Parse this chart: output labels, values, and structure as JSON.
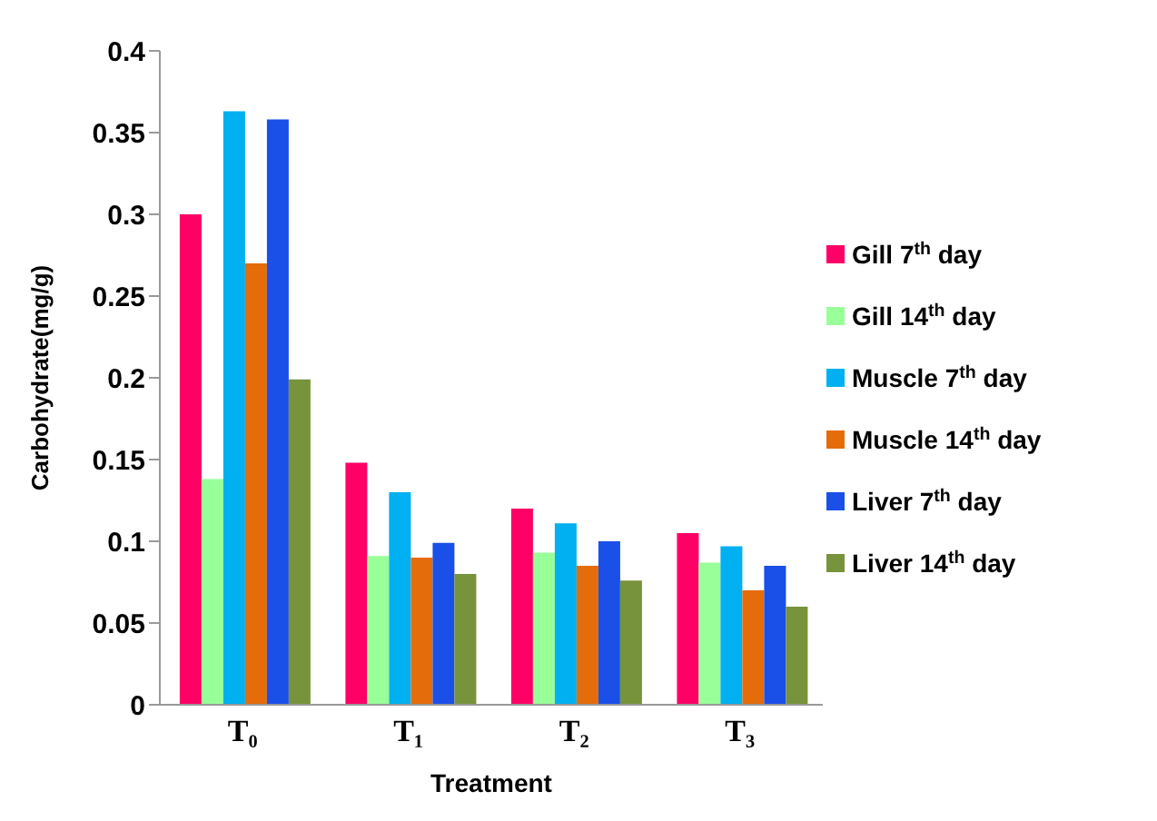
{
  "chart_data": {
    "type": "bar",
    "xlabel": "Treatment",
    "ylabel": "Carbohydrate(mg/g)",
    "categories": [
      "T₀",
      "T₁",
      "T₂",
      "T₃"
    ],
    "series": [
      {
        "name": "Gill 7$^{th}$ day",
        "color": "#ff0066",
        "values": [
          0.3,
          0.148,
          0.12,
          0.105
        ]
      },
      {
        "name": "Gill 14$^{th}$ day",
        "color": "#99ff99",
        "values": [
          0.138,
          0.091,
          0.093,
          0.087
        ]
      },
      {
        "name": "Muscle 7$^{th}$ day",
        "color": "#00b0f0",
        "values": [
          0.363,
          0.13,
          0.111,
          0.097
        ]
      },
      {
        "name": "Muscle 14$^{th}$ day",
        "color": "#e46c0a",
        "values": [
          0.27,
          0.09,
          0.085,
          0.07
        ]
      },
      {
        "name": "Liver 7$^{th}$ day",
        "color": "#1a4fe8",
        "values": [
          0.358,
          0.099,
          0.1,
          0.085
        ]
      },
      {
        "name": "Liver 14$^{th}$ day",
        "color": "#77933c",
        "values": [
          0.199,
          0.08,
          0.076,
          0.06
        ]
      }
    ],
    "ylim": [
      0,
      0.4
    ],
    "yticks": [
      0,
      0.05,
      0.1,
      0.15,
      0.2,
      0.25,
      0.3,
      0.35,
      0.4
    ],
    "grid": false,
    "legend": "right"
  }
}
